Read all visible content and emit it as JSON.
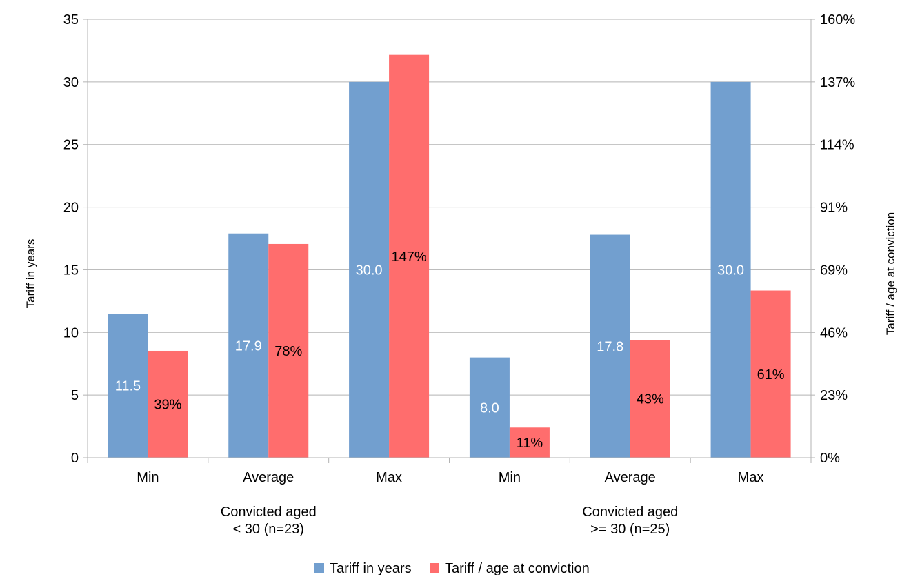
{
  "chart_data": {
    "type": "bar",
    "groups": [
      {
        "label_line1": "Convicted aged",
        "label_line2": "< 30 (n=23)",
        "categories": [
          "Min",
          "Average",
          "Max"
        ]
      },
      {
        "label_line1": "Convicted aged",
        "label_line2": ">= 30 (n=25)",
        "categories": [
          "Min",
          "Average",
          "Max"
        ]
      }
    ],
    "series": [
      {
        "name": "Tariff in years",
        "axis": "left",
        "color": "#729fcf",
        "values": [
          11.5,
          17.9,
          30.0,
          8.0,
          17.8,
          30.0
        ],
        "labels": [
          "11.5",
          "17.9",
          "30.0",
          "8.0",
          "17.8",
          "30.0"
        ]
      },
      {
        "name": "Tariff / age at conviction",
        "axis": "right",
        "color": "#ff6d6d",
        "values": [
          39,
          78,
          147,
          11,
          43,
          61
        ],
        "labels": [
          "39%",
          "78%",
          "147%",
          "11%",
          "43%",
          "61%"
        ]
      }
    ],
    "y_left": {
      "label": "Tariff in years",
      "range": [
        0,
        35
      ],
      "ticks": [
        "0",
        "5",
        "10",
        "15",
        "20",
        "25",
        "30",
        "35"
      ]
    },
    "y_right": {
      "label": "Tariff / age at conviction",
      "range": [
        0,
        160
      ],
      "ticks": [
        "0%",
        "23%",
        "46%",
        "69%",
        "91%",
        "114%",
        "137%",
        "160%"
      ]
    },
    "grid": true,
    "legend": "bottom"
  }
}
